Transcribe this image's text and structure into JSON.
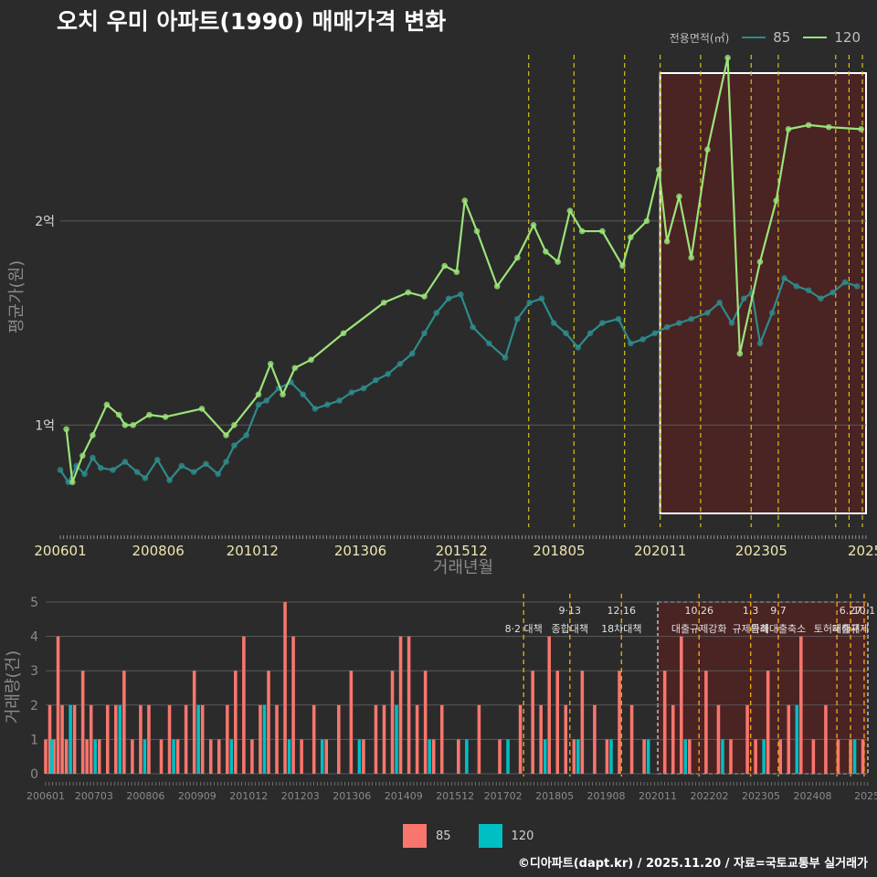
{
  "title": "오치 우미 아파트(1990) 매매가격 변화",
  "credit": "©디아파트(dapt.kr) / 2025.11.20 / 자료=국토교통부 실거래가",
  "legend_top": {
    "title": "전용면적(㎡)",
    "items": [
      {
        "label": "85",
        "color": "#2e8b8b"
      },
      {
        "label": "120",
        "color": "#9be37a"
      }
    ]
  },
  "legend_bottom": {
    "items": [
      {
        "label": "85",
        "color": "#f8766d"
      },
      {
        "label": "120",
        "color": "#00bfc4"
      }
    ]
  },
  "chart_data": [
    {
      "type": "line",
      "ylabel": "평균가(원)",
      "xlabel": "거래년월",
      "ylim": [
        0.5,
        2.85
      ],
      "yticks": [
        {
          "value": 1,
          "label": "1억"
        },
        {
          "value": 2,
          "label": "2억"
        }
      ],
      "xrange": [
        2006.0,
        2025.92
      ],
      "xticks": [
        {
          "value": 2006.0,
          "label": "200601"
        },
        {
          "value": 2008.42,
          "label": "200806"
        },
        {
          "value": 2010.75,
          "label": "201012"
        },
        {
          "value": 2013.42,
          "label": "201306"
        },
        {
          "value": 2015.92,
          "label": "201512"
        },
        {
          "value": 2018.33,
          "label": "201805"
        },
        {
          "value": 2020.83,
          "label": "202011"
        },
        {
          "value": 2023.33,
          "label": "202305"
        },
        {
          "value": 2025.9,
          "label": "2025"
        }
      ],
      "highlight_period": [
        2020.83,
        2025.92
      ],
      "policy_lines": [
        2017.58,
        2018.7,
        2019.95,
        2020.83,
        2021.83,
        2023.08,
        2023.75,
        2025.17,
        2025.5,
        2025.83
      ],
      "series": [
        {
          "name": "85",
          "color": "#2e8b8b",
          "x": [
            2006.0,
            2006.2,
            2006.4,
            2006.6,
            2006.8,
            2007.0,
            2007.3,
            2007.6,
            2007.9,
            2008.1,
            2008.4,
            2008.7,
            2009.0,
            2009.3,
            2009.6,
            2009.9,
            2010.1,
            2010.3,
            2010.6,
            2010.9,
            2011.1,
            2011.4,
            2011.7,
            2012.0,
            2012.3,
            2012.6,
            2012.9,
            2013.2,
            2013.5,
            2013.8,
            2014.1,
            2014.4,
            2014.7,
            2015.0,
            2015.3,
            2015.6,
            2015.9,
            2016.2,
            2016.6,
            2017.0,
            2017.3,
            2017.6,
            2017.9,
            2018.2,
            2018.5,
            2018.8,
            2019.1,
            2019.4,
            2019.8,
            2020.1,
            2020.4,
            2020.7,
            2021.0,
            2021.3,
            2021.6,
            2022.0,
            2022.3,
            2022.6,
            2022.9,
            2023.1,
            2023.3,
            2023.6,
            2023.9,
            2024.2,
            2024.5,
            2024.8,
            2025.1,
            2025.4,
            2025.7
          ],
          "y": [
            0.78,
            0.72,
            0.8,
            0.76,
            0.84,
            0.79,
            0.78,
            0.82,
            0.77,
            0.74,
            0.83,
            0.73,
            0.8,
            0.77,
            0.81,
            0.76,
            0.82,
            0.9,
            0.95,
            1.1,
            1.12,
            1.18,
            1.21,
            1.15,
            1.08,
            1.1,
            1.12,
            1.16,
            1.18,
            1.22,
            1.25,
            1.3,
            1.35,
            1.45,
            1.55,
            1.62,
            1.64,
            1.48,
            1.4,
            1.33,
            1.52,
            1.6,
            1.62,
            1.5,
            1.45,
            1.38,
            1.45,
            1.5,
            1.52,
            1.4,
            1.42,
            1.45,
            1.48,
            1.5,
            1.52,
            1.55,
            1.6,
            1.5,
            1.62,
            1.65,
            1.4,
            1.55,
            1.72,
            1.68,
            1.66,
            1.62,
            1.65,
            1.7,
            1.68
          ]
        },
        {
          "name": "120",
          "color": "#9be37a",
          "x": [
            2006.15,
            2006.3,
            2006.55,
            2006.8,
            2007.15,
            2007.45,
            2007.6,
            2007.8,
            2008.2,
            2008.6,
            2009.5,
            2010.1,
            2010.3,
            2010.9,
            2011.2,
            2011.5,
            2011.8,
            2012.2,
            2013.0,
            2014.0,
            2014.6,
            2015.0,
            2015.5,
            2015.8,
            2016.0,
            2016.3,
            2016.8,
            2017.3,
            2017.7,
            2018.0,
            2018.3,
            2018.6,
            2018.9,
            2019.4,
            2019.9,
            2020.1,
            2020.5,
            2020.8,
            2021.0,
            2021.3,
            2021.6,
            2022.0,
            2022.5,
            2022.8,
            2023.3,
            2023.7,
            2024.0,
            2024.5,
            2025.0,
            2025.8
          ],
          "y": [
            0.98,
            0.72,
            0.85,
            0.95,
            1.1,
            1.05,
            1.0,
            1.0,
            1.05,
            1.04,
            1.08,
            0.95,
            1.0,
            1.15,
            1.3,
            1.15,
            1.28,
            1.32,
            1.45,
            1.6,
            1.65,
            1.63,
            1.78,
            1.75,
            2.1,
            1.95,
            1.68,
            1.82,
            1.98,
            1.85,
            1.8,
            2.05,
            1.95,
            1.95,
            1.78,
            1.92,
            2.0,
            2.25,
            1.9,
            2.12,
            1.82,
            2.35,
            2.8,
            1.35,
            1.8,
            2.1,
            2.45,
            2.47,
            2.46,
            2.45
          ]
        }
      ]
    },
    {
      "type": "bar",
      "ylabel": "거래량(건)",
      "ylim": [
        0,
        5
      ],
      "yticks": [
        0,
        1,
        2,
        3,
        4,
        5
      ],
      "xticks": [
        {
          "value": 2006.0,
          "label": "200601"
        },
        {
          "value": 2007.17,
          "label": "200703"
        },
        {
          "value": 2008.42,
          "label": "200806"
        },
        {
          "value": 2009.67,
          "label": "200909"
        },
        {
          "value": 2010.92,
          "label": "201012"
        },
        {
          "value": 2012.17,
          "label": "201203"
        },
        {
          "value": 2013.42,
          "label": "201306"
        },
        {
          "value": 2014.67,
          "label": "201409"
        },
        {
          "value": 2015.92,
          "label": "201512"
        },
        {
          "value": 2017.08,
          "label": "201702"
        },
        {
          "value": 2018.33,
          "label": "201805"
        },
        {
          "value": 2019.58,
          "label": "201908"
        },
        {
          "value": 2020.83,
          "label": "202011"
        },
        {
          "value": 2022.08,
          "label": "202202"
        },
        {
          "value": 2023.33,
          "label": "202305"
        },
        {
          "value": 2024.58,
          "label": "202408"
        },
        {
          "value": 2025.9,
          "label": "2025"
        }
      ],
      "annotations": [
        {
          "x": 2017.58,
          "date": "",
          "text": "8·2 대책"
        },
        {
          "x": 2018.7,
          "date": "9·13",
          "text": "종합대책"
        },
        {
          "x": 2019.95,
          "date": "12·16",
          "text": "18차대책"
        },
        {
          "x": 2021.83,
          "date": "10.26",
          "text": "대출규제강화"
        },
        {
          "x": 2023.08,
          "date": "1.3",
          "text": "규제완화"
        },
        {
          "x": 2023.75,
          "date": "9.7",
          "text": "특례대출축소"
        },
        {
          "x": 2025.17,
          "date": "",
          "text": "토허제해제"
        },
        {
          "x": 2025.5,
          "date": "6.27",
          "text": "대출규제"
        },
        {
          "x": 2025.83,
          "date": "10.1",
          "text": ""
        }
      ],
      "series": [
        {
          "name": "85",
          "color": "#f8766d",
          "x": [
            2006.0,
            2006.1,
            2006.2,
            2006.3,
            2006.4,
            2006.5,
            2006.7,
            2006.9,
            2007.0,
            2007.1,
            2007.3,
            2007.5,
            2007.7,
            2007.9,
            2008.1,
            2008.3,
            2008.5,
            2008.8,
            2009.0,
            2009.2,
            2009.4,
            2009.6,
            2009.8,
            2010.0,
            2010.2,
            2010.4,
            2010.6,
            2010.8,
            2011.0,
            2011.2,
            2011.4,
            2011.6,
            2011.8,
            2012.0,
            2012.2,
            2012.5,
            2012.8,
            2013.1,
            2013.4,
            2013.7,
            2014.0,
            2014.2,
            2014.4,
            2014.6,
            2014.8,
            2015.0,
            2015.2,
            2015.4,
            2015.6,
            2016.0,
            2016.5,
            2017.0,
            2017.5,
            2017.8,
            2018.0,
            2018.2,
            2018.4,
            2018.6,
            2018.8,
            2019.0,
            2019.3,
            2019.6,
            2019.9,
            2020.2,
            2020.5,
            2021.0,
            2021.2,
            2021.4,
            2021.6,
            2022.0,
            2022.3,
            2022.6,
            2023.0,
            2023.2,
            2023.5,
            2023.8,
            2024.0,
            2024.3,
            2024.6,
            2024.9,
            2025.2,
            2025.5,
            2025.8
          ],
          "y": [
            1,
            2,
            1,
            4,
            2,
            1,
            2,
            3,
            1,
            2,
            1,
            2,
            2,
            3,
            1,
            2,
            2,
            1,
            2,
            1,
            2,
            3,
            2,
            1,
            1,
            2,
            3,
            4,
            1,
            2,
            3,
            2,
            5,
            4,
            1,
            2,
            1,
            2,
            3,
            1,
            2,
            2,
            3,
            4,
            4,
            2,
            3,
            1,
            2,
            1,
            2,
            1,
            2,
            3,
            2,
            4,
            3,
            2,
            1,
            3,
            2,
            1,
            3,
            2,
            1,
            3,
            2,
            4,
            1,
            3,
            2,
            1,
            2,
            1,
            3,
            1,
            2,
            4,
            1,
            2,
            1,
            1,
            1
          ]
        },
        {
          "name": "120",
          "color": "#00bfc4",
          "x": [
            2006.15,
            2006.6,
            2007.2,
            2007.8,
            2008.4,
            2009.1,
            2009.7,
            2010.5,
            2011.3,
            2011.9,
            2012.7,
            2013.6,
            2014.5,
            2015.3,
            2016.2,
            2017.2,
            2018.1,
            2018.9,
            2019.7,
            2020.6,
            2021.5,
            2022.4,
            2023.4,
            2024.2,
            2025.6
          ],
          "y": [
            1,
            2,
            1,
            2,
            1,
            1,
            2,
            1,
            2,
            1,
            1,
            1,
            2,
            1,
            1,
            1,
            1,
            1,
            1,
            1,
            1,
            1,
            1,
            2,
            1
          ]
        }
      ]
    }
  ]
}
